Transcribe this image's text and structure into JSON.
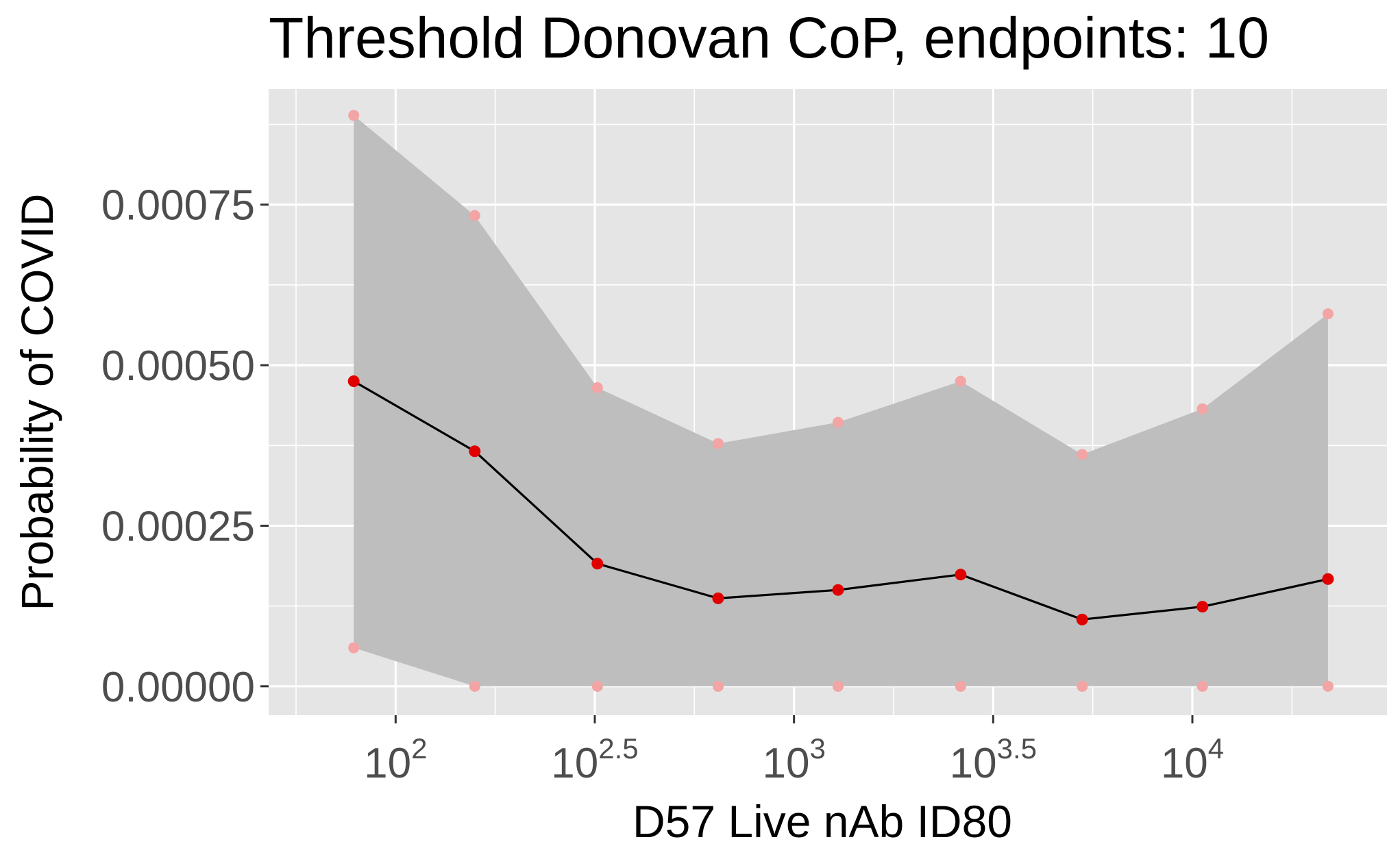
{
  "chart_data": {
    "type": "line",
    "title": "Threshold Donovan CoP, endpoints: 10",
    "xlabel": "D57 Live nAb ID80",
    "ylabel": "Probability of COVID",
    "x_scale": "log10",
    "xlim": [
      48.0,
      30800
    ],
    "ylim": [
      -4.5e-05,
      0.00093
    ],
    "x_ticks": [
      {
        "base": "10",
        "exp": "2",
        "value": 100
      },
      {
        "base": "10",
        "exp": "2.5",
        "value": 316.23
      },
      {
        "base": "10",
        "exp": "3",
        "value": 1000
      },
      {
        "base": "10",
        "exp": "3.5",
        "value": 3162.3
      },
      {
        "base": "10",
        "exp": "4",
        "value": 10000
      }
    ],
    "y_ticks": [
      {
        "label": "0.00000",
        "value": 0
      },
      {
        "label": "0.00025",
        "value": 0.00025
      },
      {
        "label": "0.00050",
        "value": 0.0005
      },
      {
        "label": "0.00075",
        "value": 0.00075
      }
    ],
    "x": [
      78.5,
      158,
      321,
      645,
      1290,
      2620,
      5290,
      10600,
      21900
    ],
    "series": [
      {
        "role": "estimate",
        "values": [
          0.000475,
          0.000366,
          0.000191,
          0.000137,
          0.00015,
          0.000174,
          0.000104,
          0.000124,
          0.000167
        ]
      },
      {
        "role": "upper",
        "values": [
          0.000889,
          0.000733,
          0.000465,
          0.000378,
          0.000411,
          0.000475,
          0.000361,
          0.000432,
          0.00058
        ]
      },
      {
        "role": "lower",
        "values": [
          6e-05,
          0.0,
          0.0,
          0.0,
          0.0,
          0.0,
          0.0,
          0.0,
          0.0
        ]
      }
    ],
    "grid": true,
    "colors": {
      "panel": "#e5e5e5",
      "grid": "#ffffff",
      "band": "#bebebe",
      "line": "#000000",
      "point": "#e00000",
      "bound_point": "#f3a4a4"
    }
  }
}
